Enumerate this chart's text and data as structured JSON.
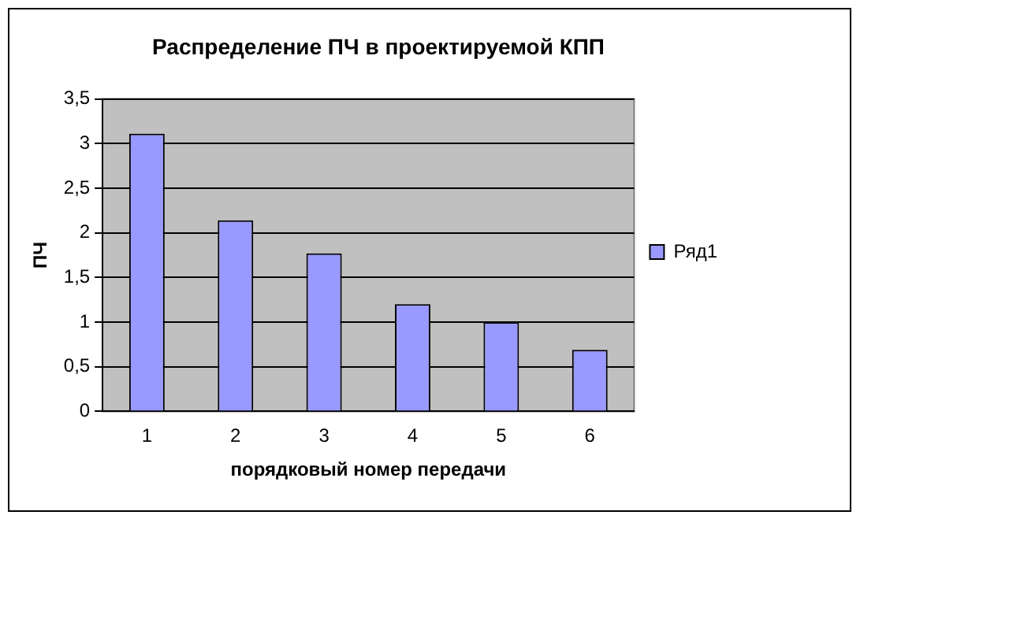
{
  "chart_data": {
    "type": "bar",
    "title": "Распределение ПЧ в проектируемой КПП",
    "xlabel": "порядковый номер передачи",
    "ylabel": "ПЧ",
    "categories": [
      "1",
      "2",
      "3",
      "4",
      "5",
      "6"
    ],
    "series": [
      {
        "name": "Ряд1",
        "color": "#9999ff",
        "values": [
          3.11,
          2.14,
          1.77,
          1.2,
          1.0,
          0.69
        ]
      }
    ],
    "ylim": [
      0,
      3.5
    ],
    "yticks": [
      0,
      {
        "value": 0.5,
        "label": "0,5"
      },
      1,
      {
        "value": 1.5,
        "label": "1,5"
      },
      2,
      {
        "value": 2.5,
        "label": "2,5"
      },
      3,
      {
        "value": 3.5,
        "label": "3,5"
      }
    ],
    "grid": "y",
    "legend": "right"
  }
}
